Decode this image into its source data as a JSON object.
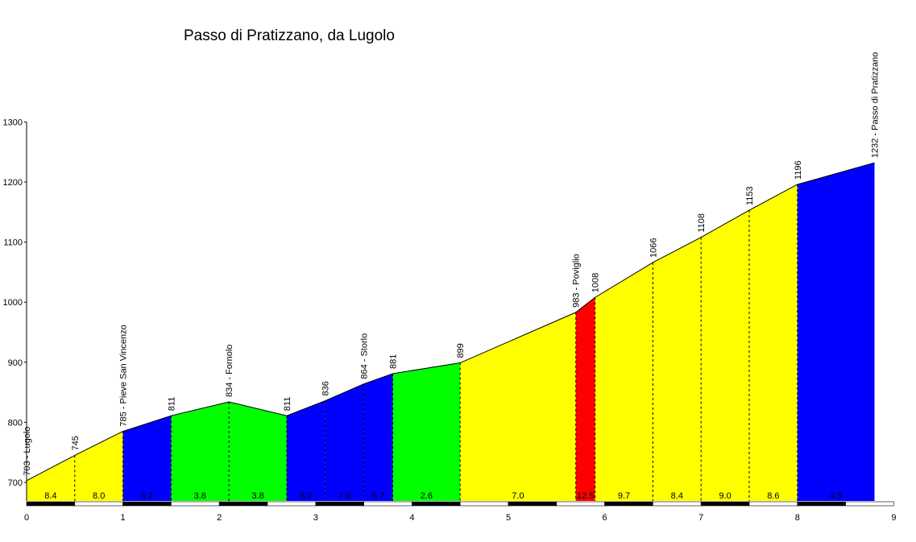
{
  "chart_data": {
    "type": "area",
    "title": "Passo di Pratizzano, da Lugolo",
    "xlabel": "",
    "ylabel": "",
    "xlim": [
      0,
      9
    ],
    "ylim": [
      665,
      1300
    ],
    "yticks": [
      "700",
      "800",
      "900",
      "1000",
      "1100",
      "1200",
      "1300"
    ],
    "xticks": [
      "0",
      "1",
      "2",
      "3",
      "4",
      "5",
      "6",
      "7",
      "8",
      "9"
    ],
    "grid": false,
    "legend": "none",
    "profile": [
      {
        "x": 0.0,
        "y": 703,
        "label": "703 - Lugolo"
      },
      {
        "x": 0.5,
        "y": 745,
        "label": "745"
      },
      {
        "x": 1.0,
        "y": 785,
        "label": "785 - Pieve San Vincenzo"
      },
      {
        "x": 1.5,
        "y": 811,
        "label": "811"
      },
      {
        "x": 2.1,
        "y": 834,
        "label": "834 - Fornolo"
      },
      {
        "x": 2.7,
        "y": 811,
        "label": "811"
      },
      {
        "x": 3.1,
        "y": 836,
        "label": "836"
      },
      {
        "x": 3.5,
        "y": 864,
        "label": "864 - Storlo"
      },
      {
        "x": 3.8,
        "y": 881,
        "label": "881"
      },
      {
        "x": 4.5,
        "y": 899,
        "label": "899"
      },
      {
        "x": 5.7,
        "y": 983,
        "label": "983 - Poviglio"
      },
      {
        "x": 5.9,
        "y": 1008,
        "label": "1008"
      },
      {
        "x": 6.5,
        "y": 1066,
        "label": "1066"
      },
      {
        "x": 7.0,
        "y": 1108,
        "label": "1108"
      },
      {
        "x": 7.5,
        "y": 1153,
        "label": "1153"
      },
      {
        "x": 8.0,
        "y": 1196,
        "label": "1196"
      },
      {
        "x": 8.8,
        "y": 1232,
        "label": "1232 - Passo di Pratizzano"
      }
    ],
    "segments": [
      {
        "from": 0.0,
        "to": 0.5,
        "gradient": "8.4",
        "color": "#ffff00"
      },
      {
        "from": 0.5,
        "to": 1.0,
        "gradient": "8.0",
        "color": "#ffff00"
      },
      {
        "from": 1.0,
        "to": 1.5,
        "gradient": "5.2",
        "color": "#0000ff"
      },
      {
        "from": 1.5,
        "to": 2.1,
        "gradient": "3.8",
        "color": "#00ff00"
      },
      {
        "from": 2.1,
        "to": 2.7,
        "gradient": "3.8",
        "color": "#00ff00"
      },
      {
        "from": 2.7,
        "to": 3.1,
        "gradient": "6.2",
        "color": "#0000ff"
      },
      {
        "from": 3.1,
        "to": 3.5,
        "gradient": "7.0",
        "color": "#0000ff"
      },
      {
        "from": 3.5,
        "to": 3.8,
        "gradient": "5.7",
        "color": "#0000ff"
      },
      {
        "from": 3.8,
        "to": 4.5,
        "gradient": "2.6",
        "color": "#00ff00"
      },
      {
        "from": 4.5,
        "to": 5.7,
        "gradient": "7.0",
        "color": "#ffff00"
      },
      {
        "from": 5.7,
        "to": 5.9,
        "gradient": "12.5",
        "color": "#ff0000"
      },
      {
        "from": 5.9,
        "to": 6.5,
        "gradient": "9.7",
        "color": "#ffff00"
      },
      {
        "from": 6.5,
        "to": 7.0,
        "gradient": "8.4",
        "color": "#ffff00"
      },
      {
        "from": 7.0,
        "to": 7.5,
        "gradient": "9.0",
        "color": "#ffff00"
      },
      {
        "from": 7.5,
        "to": 8.0,
        "gradient": "8.6",
        "color": "#ffff00"
      },
      {
        "from": 8.0,
        "to": 8.8,
        "gradient": "4.5",
        "color": "#0000ff"
      }
    ]
  }
}
